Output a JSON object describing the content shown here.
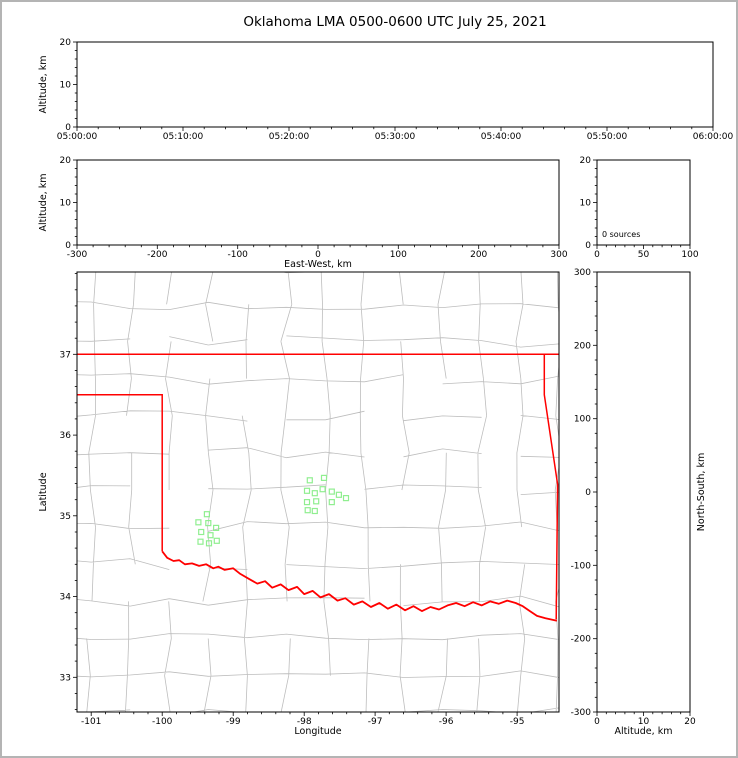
{
  "chart_data": {
    "type": "scatter",
    "title": "Oklahoma LMA 0500-0600 UTC July 25, 2021",
    "panels": {
      "time_height": {
        "description": "Altitude vs time panel (no sources plotted)",
        "xlim_seconds": [
          0,
          3600
        ],
        "xticks_seconds": [
          0,
          600,
          1200,
          1800,
          2400,
          3000,
          3600
        ],
        "xtick_labels": [
          "05:00:00",
          "05:10:00",
          "05:20:00",
          "05:30:00",
          "05:40:00",
          "05:50:00",
          "06:00:00"
        ],
        "ylabel": "Altitude, km",
        "ylim": [
          0,
          20
        ],
        "yticks": [
          0,
          10,
          20
        ],
        "points": []
      },
      "ew_height": {
        "description": "Altitude vs East-West distance panel (no sources plotted)",
        "xlabel": "East-West, km",
        "xlim": [
          -300,
          300
        ],
        "xticks": [
          -300,
          -200,
          -100,
          0,
          100,
          200,
          300
        ],
        "ylabel": "Altitude, km",
        "ylim": [
          0,
          20
        ],
        "yticks": [
          0,
          10,
          20
        ],
        "points": []
      },
      "source_histogram": {
        "description": "Altitude histogram panel",
        "annotation": "0 sources",
        "xlim": [
          0,
          100
        ],
        "xticks": [
          0,
          50,
          100
        ],
        "ylim": [
          0,
          20
        ],
        "yticks": [
          0,
          10,
          20
        ]
      },
      "map": {
        "description": "Plan view map of Oklahoma with county and state borders and LMA sources",
        "xlabel": "Longitude",
        "xlim": [
          -101.2,
          -94.41
        ],
        "xticks": [
          -101,
          -100,
          -99,
          -98,
          -97,
          -96,
          -95
        ],
        "ylabel": "Latitude",
        "ylim": [
          32.57,
          38.02
        ],
        "yticks": [
          33,
          34,
          35,
          36,
          37
        ],
        "county_line_color": "#bdbdbd",
        "state_border_color": "#ff0000",
        "source_color": "#90ee90",
        "sources_lonlat": [
          [
            -97.92,
            35.44
          ],
          [
            -97.72,
            35.47
          ],
          [
            -97.96,
            35.31
          ],
          [
            -97.85,
            35.28
          ],
          [
            -97.74,
            35.33
          ],
          [
            -97.96,
            35.17
          ],
          [
            -97.83,
            35.18
          ],
          [
            -97.95,
            35.07
          ],
          [
            -97.85,
            35.06
          ],
          [
            -97.61,
            35.3
          ],
          [
            -97.51,
            35.26
          ],
          [
            -97.41,
            35.22
          ],
          [
            -97.61,
            35.17
          ],
          [
            -99.37,
            35.02
          ],
          [
            -99.49,
            34.92
          ],
          [
            -99.35,
            34.91
          ],
          [
            -99.24,
            34.85
          ],
          [
            -99.45,
            34.8
          ],
          [
            -99.32,
            34.76
          ],
          [
            -99.46,
            34.68
          ],
          [
            -99.34,
            34.66
          ],
          [
            -99.23,
            34.69
          ]
        ],
        "oklahoma_border": {
          "north_line_lat": 37.0,
          "panhandle_south_line": [
            [
              -101.2,
              36.5
            ],
            [
              -100.0,
              36.5
            ],
            [
              -100.0,
              34.56
            ]
          ],
          "east_line": [
            [
              -94.617,
              37.0
            ],
            [
              -94.617,
              36.5
            ],
            [
              -94.43,
              35.39
            ],
            [
              -94.45,
              33.72
            ]
          ],
          "red_river_lonlat": [
            [
              -100.0,
              34.56
            ],
            [
              -99.93,
              34.48
            ],
            [
              -99.84,
              34.44
            ],
            [
              -99.76,
              34.45
            ],
            [
              -99.68,
              34.4
            ],
            [
              -99.58,
              34.41
            ],
            [
              -99.48,
              34.38
            ],
            [
              -99.38,
              34.4
            ],
            [
              -99.28,
              34.35
            ],
            [
              -99.21,
              34.37
            ],
            [
              -99.12,
              34.33
            ],
            [
              -99.0,
              34.35
            ],
            [
              -98.9,
              34.28
            ],
            [
              -98.78,
              34.22
            ],
            [
              -98.66,
              34.16
            ],
            [
              -98.55,
              34.19
            ],
            [
              -98.45,
              34.11
            ],
            [
              -98.33,
              34.15
            ],
            [
              -98.22,
              34.08
            ],
            [
              -98.1,
              34.12
            ],
            [
              -98.0,
              34.03
            ],
            [
              -97.88,
              34.07
            ],
            [
              -97.77,
              33.99
            ],
            [
              -97.65,
              34.03
            ],
            [
              -97.53,
              33.95
            ],
            [
              -97.42,
              33.98
            ],
            [
              -97.3,
              33.9
            ],
            [
              -97.18,
              33.94
            ],
            [
              -97.06,
              33.87
            ],
            [
              -96.94,
              33.92
            ],
            [
              -96.82,
              33.85
            ],
            [
              -96.7,
              33.9
            ],
            [
              -96.58,
              33.83
            ],
            [
              -96.46,
              33.88
            ],
            [
              -96.34,
              33.82
            ],
            [
              -96.22,
              33.87
            ],
            [
              -96.1,
              33.84
            ],
            [
              -95.98,
              33.89
            ],
            [
              -95.86,
              33.92
            ],
            [
              -95.74,
              33.88
            ],
            [
              -95.62,
              33.93
            ],
            [
              -95.5,
              33.89
            ],
            [
              -95.38,
              33.94
            ],
            [
              -95.26,
              33.91
            ],
            [
              -95.14,
              33.95
            ],
            [
              -95.02,
              33.92
            ],
            [
              -94.92,
              33.88
            ],
            [
              -94.82,
              33.82
            ],
            [
              -94.72,
              33.76
            ],
            [
              -94.6,
              33.73
            ],
            [
              -94.44,
              33.7
            ]
          ]
        }
      },
      "ns_height": {
        "description": "Altitude vs North-South distance panel (no sources plotted)",
        "xlabel": "Altitude, km",
        "xlim": [
          0,
          20
        ],
        "xticks": [
          0,
          10,
          20
        ],
        "ylabel": "North-South, km",
        "ylim": [
          -300,
          300
        ],
        "yticks": [
          -300,
          -200,
          -100,
          0,
          100,
          200,
          300
        ],
        "points": []
      }
    }
  }
}
